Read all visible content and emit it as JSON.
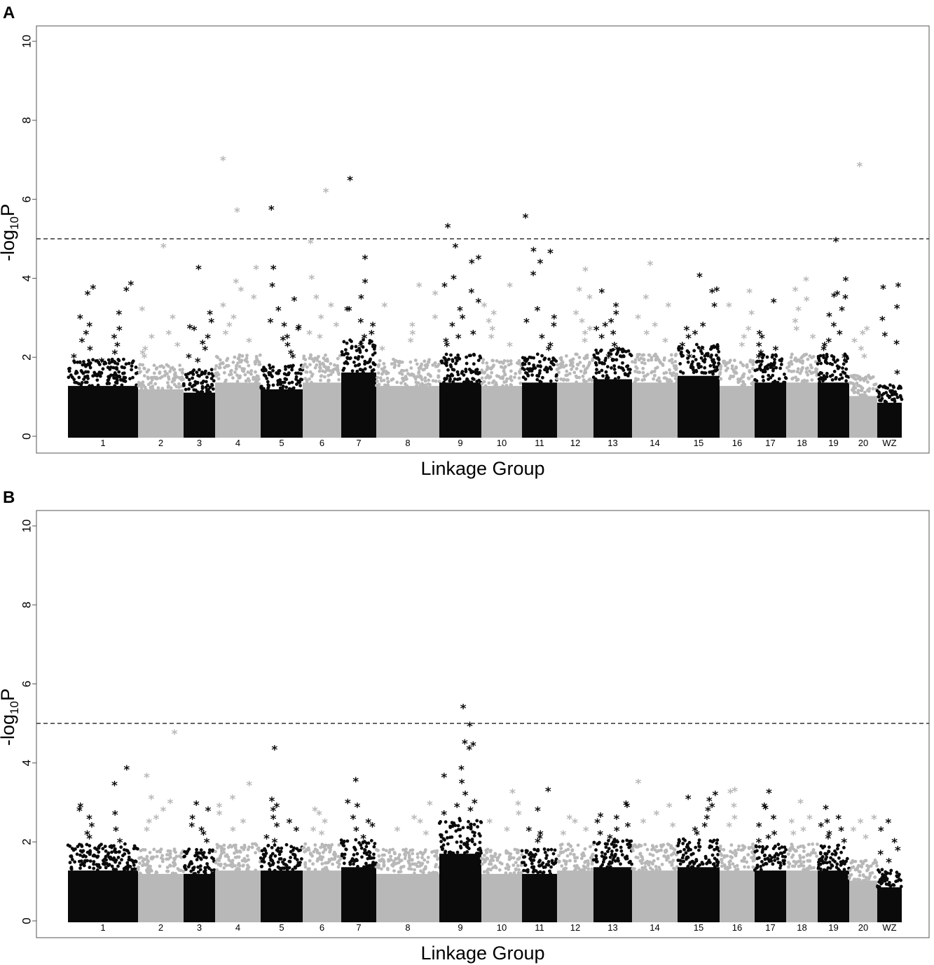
{
  "figure": {
    "colors": {
      "dark": "#0a0a0a",
      "light": "#b8b8b8",
      "threshold": "#333333"
    },
    "groups": [
      "1",
      "2",
      "3",
      "4",
      "5",
      "6",
      "7",
      "8",
      "9",
      "10",
      "11",
      "12",
      "13",
      "14",
      "15",
      "16",
      "17",
      "18",
      "19",
      "20",
      "WZ"
    ]
  },
  "chart_data": [
    {
      "panel": "A",
      "type": "scatter",
      "marker": "*",
      "xlabel": "Linkage Group",
      "ylabel": "-log10P",
      "ylim": [
        0,
        10.5
      ],
      "yticks": [
        0,
        2,
        4,
        6,
        8,
        10
      ],
      "threshold": 5,
      "categories": [
        "1",
        "2",
        "3",
        "4",
        "5",
        "6",
        "7",
        "8",
        "9",
        "10",
        "11",
        "12",
        "13",
        "14",
        "15",
        "16",
        "17",
        "18",
        "19",
        "20",
        "WZ"
      ],
      "bulk_max": [
        1.5,
        1.4,
        1.3,
        1.6,
        1.4,
        1.6,
        1.9,
        1.5,
        1.6,
        1.5,
        1.6,
        1.6,
        1.7,
        1.6,
        1.8,
        1.5,
        1.6,
        1.6,
        1.6,
        1.2,
        1.0
      ],
      "top_points": [
        {
          "group": "1",
          "y": [
            3.85,
            3.7,
            3.6,
            3.0,
            2.7,
            2.6,
            2.4,
            2.3,
            2.1,
            2.0,
            1.9,
            2.8,
            3.1,
            3.75,
            2.5,
            2.2
          ]
        },
        {
          "group": "2",
          "y": [
            4.8,
            3.2,
            3.0,
            2.6,
            2.5,
            2.3,
            2.2,
            2.1,
            2.0
          ]
        },
        {
          "group": "3",
          "y": [
            4.25,
            3.1,
            2.9,
            2.7,
            2.5,
            2.35,
            2.2,
            2.0,
            1.9,
            2.75
          ]
        },
        {
          "group": "4",
          "y": [
            7.0,
            5.7,
            4.25,
            3.9,
            3.7,
            3.5,
            3.3,
            3.0,
            2.8,
            2.6,
            2.4
          ]
        },
        {
          "group": "5",
          "y": [
            5.75,
            4.25,
            3.2,
            2.9,
            2.8,
            2.75,
            2.7,
            2.5,
            2.45,
            2.3,
            2.1,
            2.0,
            3.45,
            3.8
          ]
        },
        {
          "group": "6",
          "y": [
            6.2,
            4.9,
            4.0,
            3.5,
            3.3,
            3.0,
            2.8,
            2.6,
            2.5
          ]
        },
        {
          "group": "7",
          "y": [
            6.5,
            4.5,
            3.9,
            3.5,
            3.2,
            2.9,
            2.8,
            2.6,
            2.5,
            2.3,
            3.2
          ]
        },
        {
          "group": "8",
          "y": [
            3.8,
            3.6,
            3.3,
            3.0,
            2.8,
            2.6,
            2.4,
            2.2
          ]
        },
        {
          "group": "9",
          "y": [
            5.3,
            4.8,
            4.5,
            4.4,
            4.0,
            3.8,
            3.65,
            3.4,
            3.2,
            3.0,
            2.8,
            2.6,
            2.5,
            2.4,
            2.3
          ]
        },
        {
          "group": "10",
          "y": [
            3.8,
            3.3,
            3.1,
            2.9,
            2.7,
            2.5,
            2.3
          ]
        },
        {
          "group": "11",
          "y": [
            5.55,
            4.7,
            4.65,
            4.4,
            4.1,
            3.2,
            3.0,
            2.9,
            2.8,
            2.5,
            2.3,
            2.2
          ]
        },
        {
          "group": "12",
          "y": [
            4.2,
            3.7,
            3.5,
            3.1,
            2.9,
            2.7,
            2.6,
            2.4
          ]
        },
        {
          "group": "13",
          "y": [
            3.65,
            3.3,
            3.1,
            2.9,
            2.8,
            2.7,
            2.6,
            2.5,
            2.3,
            2.2,
            2.0
          ]
        },
        {
          "group": "14",
          "y": [
            4.35,
            3.5,
            3.3,
            3.0,
            2.8,
            2.6,
            2.4
          ]
        },
        {
          "group": "15",
          "y": [
            4.05,
            3.7,
            3.65,
            3.3,
            2.8,
            2.7,
            2.6,
            2.5,
            2.3,
            2.2,
            2.0
          ]
        },
        {
          "group": "16",
          "y": [
            3.65,
            3.3,
            3.1,
            2.7,
            2.5,
            2.3
          ]
        },
        {
          "group": "17",
          "y": [
            3.4,
            2.6,
            2.5,
            2.3,
            2.2,
            2.1,
            2.0
          ]
        },
        {
          "group": "18",
          "y": [
            3.95,
            3.7,
            3.45,
            3.2,
            2.9,
            2.7,
            2.5
          ]
        },
        {
          "group": "19",
          "y": [
            4.95,
            3.95,
            3.6,
            3.55,
            3.5,
            3.2,
            3.05,
            2.8,
            2.6,
            2.4,
            2.3,
            2.2,
            2.0
          ]
        },
        {
          "group": "20",
          "y": [
            6.85,
            2.7,
            2.6,
            2.4,
            2.2,
            2.0
          ]
        },
        {
          "group": "WZ",
          "y": [
            3.8,
            3.75,
            3.25,
            2.95,
            2.55,
            2.35,
            1.6
          ]
        }
      ]
    },
    {
      "panel": "B",
      "type": "scatter",
      "marker": "*",
      "xlabel": "Linkage Group",
      "ylabel": "-log10P",
      "ylim": [
        0,
        10.5
      ],
      "yticks": [
        0,
        2,
        4,
        6,
        8,
        10
      ],
      "threshold": 5,
      "categories": [
        "1",
        "2",
        "3",
        "4",
        "5",
        "6",
        "7",
        "8",
        "9",
        "10",
        "11",
        "12",
        "13",
        "14",
        "15",
        "16",
        "17",
        "18",
        "19",
        "20",
        "WZ"
      ],
      "bulk_max": [
        1.5,
        1.4,
        1.4,
        1.5,
        1.5,
        1.5,
        1.6,
        1.4,
        2.0,
        1.4,
        1.4,
        1.5,
        1.6,
        1.5,
        1.6,
        1.5,
        1.5,
        1.5,
        1.5,
        1.2,
        1.0
      ],
      "top_points": [
        {
          "group": "1",
          "y": [
            3.85,
            3.45,
            2.9,
            2.8,
            2.7,
            2.6,
            2.4,
            2.3,
            2.2,
            2.1,
            2.0
          ]
        },
        {
          "group": "2",
          "y": [
            4.75,
            3.65,
            3.1,
            3.0,
            2.8,
            2.6,
            2.5,
            2.3
          ]
        },
        {
          "group": "3",
          "y": [
            2.95,
            2.8,
            2.6,
            2.4,
            2.3,
            2.2,
            2.0
          ]
        },
        {
          "group": "4",
          "y": [
            3.45,
            3.1,
            2.9,
            2.7,
            2.5,
            2.3
          ]
        },
        {
          "group": "5",
          "y": [
            4.35,
            3.05,
            2.9,
            2.8,
            2.6,
            2.5,
            2.4,
            2.3,
            2.1,
            2.0
          ]
        },
        {
          "group": "6",
          "y": [
            2.8,
            2.7,
            2.5,
            2.3,
            2.2
          ]
        },
        {
          "group": "7",
          "y": [
            3.55,
            3.0,
            2.9,
            2.6,
            2.5,
            2.4,
            2.3,
            2.1
          ]
        },
        {
          "group": "8",
          "y": [
            2.95,
            2.6,
            2.5,
            2.3,
            2.2
          ]
        },
        {
          "group": "9",
          "y": [
            5.4,
            4.95,
            4.5,
            4.45,
            4.35,
            3.85,
            3.65,
            3.5,
            3.2,
            3.0,
            2.9,
            2.8,
            2.7
          ]
        },
        {
          "group": "10",
          "y": [
            3.25,
            2.95,
            2.7,
            2.5,
            2.3
          ]
        },
        {
          "group": "11",
          "y": [
            3.3,
            2.8,
            2.3,
            2.2,
            2.1,
            2.0
          ]
        },
        {
          "group": "12",
          "y": [
            2.6,
            2.5,
            2.3,
            2.2
          ]
        },
        {
          "group": "13",
          "y": [
            2.95,
            2.9,
            2.65,
            2.6,
            2.5,
            2.4,
            2.3,
            2.2,
            2.1,
            2.0
          ]
        },
        {
          "group": "14",
          "y": [
            3.5,
            2.9,
            2.7,
            2.5,
            2.4
          ]
        },
        {
          "group": "15",
          "y": [
            3.2,
            3.1,
            3.05,
            2.9,
            2.8,
            2.6,
            2.4,
            2.3,
            2.2
          ]
        },
        {
          "group": "16",
          "y": [
            3.3,
            3.25,
            2.9,
            2.6,
            2.4
          ]
        },
        {
          "group": "17",
          "y": [
            3.25,
            2.9,
            2.85,
            2.6,
            2.4,
            2.2,
            2.1,
            2.0
          ]
        },
        {
          "group": "18",
          "y": [
            3.0,
            2.6,
            2.5,
            2.3,
            2.2
          ]
        },
        {
          "group": "19",
          "y": [
            2.85,
            2.6,
            2.5,
            2.4,
            2.3,
            2.2,
            2.1,
            2.0
          ]
        },
        {
          "group": "20",
          "y": [
            2.6,
            2.5,
            2.3,
            2.1
          ]
        },
        {
          "group": "WZ",
          "y": [
            2.5,
            2.3,
            2.0,
            1.8,
            1.7,
            1.5
          ]
        }
      ]
    }
  ]
}
